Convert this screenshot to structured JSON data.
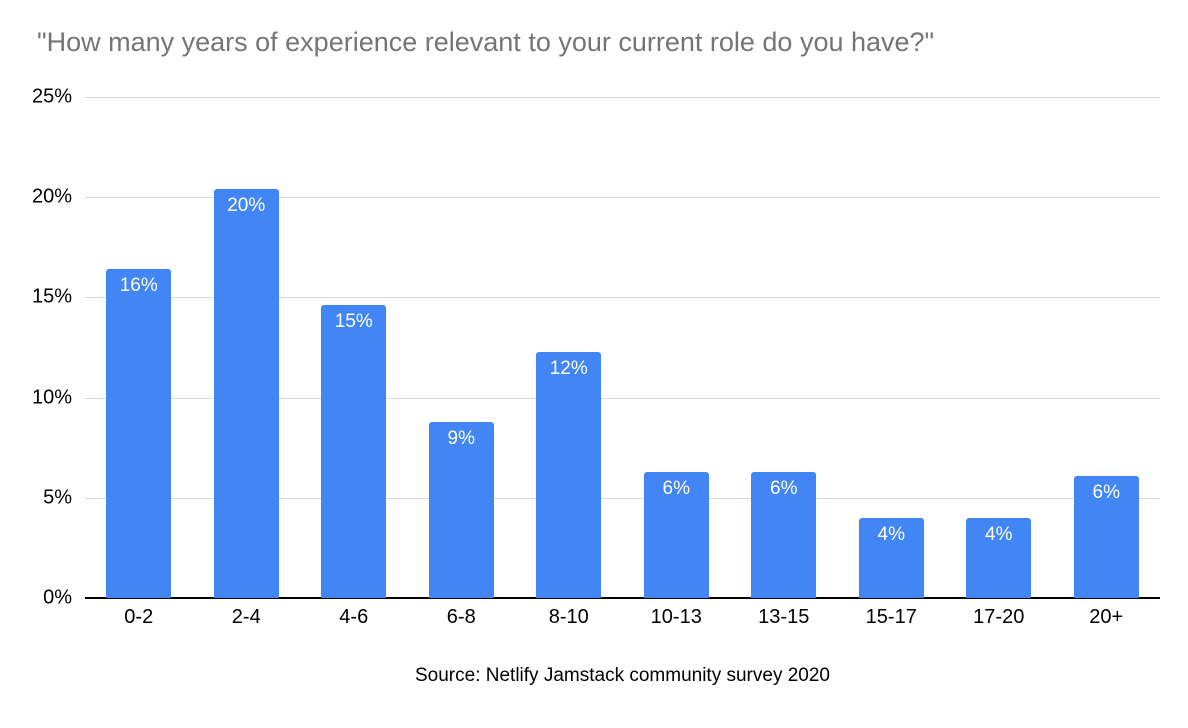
{
  "chart_data": {
    "type": "bar",
    "title": "\"How many years of experience relevant to your current role do you have?\"",
    "categories": [
      "0-2",
      "2-4",
      "4-6",
      "6-8",
      "8-10",
      "10-13",
      "13-15",
      "15-17",
      "17-20",
      "20+"
    ],
    "values": [
      16.4,
      20.4,
      14.6,
      8.8,
      12.3,
      6.3,
      6.3,
      4.0,
      4.0,
      6.1
    ],
    "value_labels": [
      "16%",
      "20%",
      "15%",
      "9%",
      "12%",
      "6%",
      "6%",
      "4%",
      "4%",
      "6%"
    ],
    "ylim": [
      0,
      25
    ],
    "yticks": [
      0,
      5,
      10,
      15,
      20,
      25
    ],
    "ytick_labels": [
      "0%",
      "5%",
      "10%",
      "15%",
      "20%",
      "25%"
    ],
    "bar_color": "#4285F4",
    "grid": true,
    "legend": "none",
    "source": "Source: Netlify Jamstack community survey 2020"
  }
}
